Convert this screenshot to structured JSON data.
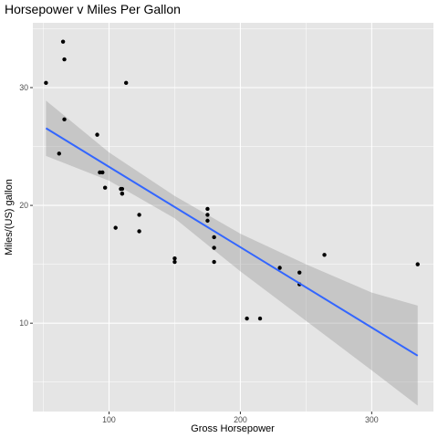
{
  "chart_data": {
    "type": "scatter",
    "title": "Horsepower v Miles Per Gallon",
    "xlabel": "Gross Horsepower",
    "ylabel": "Miles/(US) gallon",
    "xlim": [
      42,
      347
    ],
    "ylim": [
      2.5,
      35.5
    ],
    "x_ticks": [
      100,
      200,
      300
    ],
    "y_ticks": [
      10,
      20,
      30
    ],
    "grid": true,
    "legend": "none",
    "colors": {
      "panel": "#e5e5e5",
      "grid_major": "#ffffff",
      "point": "#000000",
      "line": "#3366ff",
      "ribbon": "#999999"
    },
    "points": [
      {
        "x": 110,
        "y": 21.0
      },
      {
        "x": 110,
        "y": 21.0
      },
      {
        "x": 93,
        "y": 22.8
      },
      {
        "x": 110,
        "y": 21.4
      },
      {
        "x": 175,
        "y": 18.7
      },
      {
        "x": 105,
        "y": 18.1
      },
      {
        "x": 245,
        "y": 14.3
      },
      {
        "x": 62,
        "y": 24.4
      },
      {
        "x": 95,
        "y": 22.8
      },
      {
        "x": 123,
        "y": 19.2
      },
      {
        "x": 123,
        "y": 17.8
      },
      {
        "x": 180,
        "y": 16.4
      },
      {
        "x": 180,
        "y": 17.3
      },
      {
        "x": 180,
        "y": 15.2
      },
      {
        "x": 205,
        "y": 10.4
      },
      {
        "x": 215,
        "y": 10.4
      },
      {
        "x": 230,
        "y": 14.7
      },
      {
        "x": 66,
        "y": 32.4
      },
      {
        "x": 52,
        "y": 30.4
      },
      {
        "x": 65,
        "y": 33.9
      },
      {
        "x": 97,
        "y": 21.5
      },
      {
        "x": 150,
        "y": 15.5
      },
      {
        "x": 150,
        "y": 15.2
      },
      {
        "x": 245,
        "y": 13.3
      },
      {
        "x": 175,
        "y": 19.2
      },
      {
        "x": 66,
        "y": 27.3
      },
      {
        "x": 91,
        "y": 26.0
      },
      {
        "x": 113,
        "y": 30.4
      },
      {
        "x": 264,
        "y": 15.8
      },
      {
        "x": 175,
        "y": 19.7
      },
      {
        "x": 335,
        "y": 15.0
      },
      {
        "x": 109,
        "y": 21.4
      }
    ],
    "fit_line": [
      {
        "x": 52,
        "y": 26.55
      },
      {
        "x": 335,
        "y": 7.24
      }
    ],
    "ribbon": [
      {
        "x": 52,
        "lower": 24.2,
        "upper": 28.9
      },
      {
        "x": 100,
        "lower": 22.1,
        "upper": 24.5
      },
      {
        "x": 150,
        "lower": 18.9,
        "upper": 20.8
      },
      {
        "x": 200,
        "lower": 14.4,
        "upper": 17.6
      },
      {
        "x": 250,
        "lower": 10.2,
        "upper": 15.0
      },
      {
        "x": 300,
        "lower": 6.0,
        "upper": 12.6
      },
      {
        "x": 335,
        "lower": 3.0,
        "upper": 11.5
      }
    ]
  }
}
